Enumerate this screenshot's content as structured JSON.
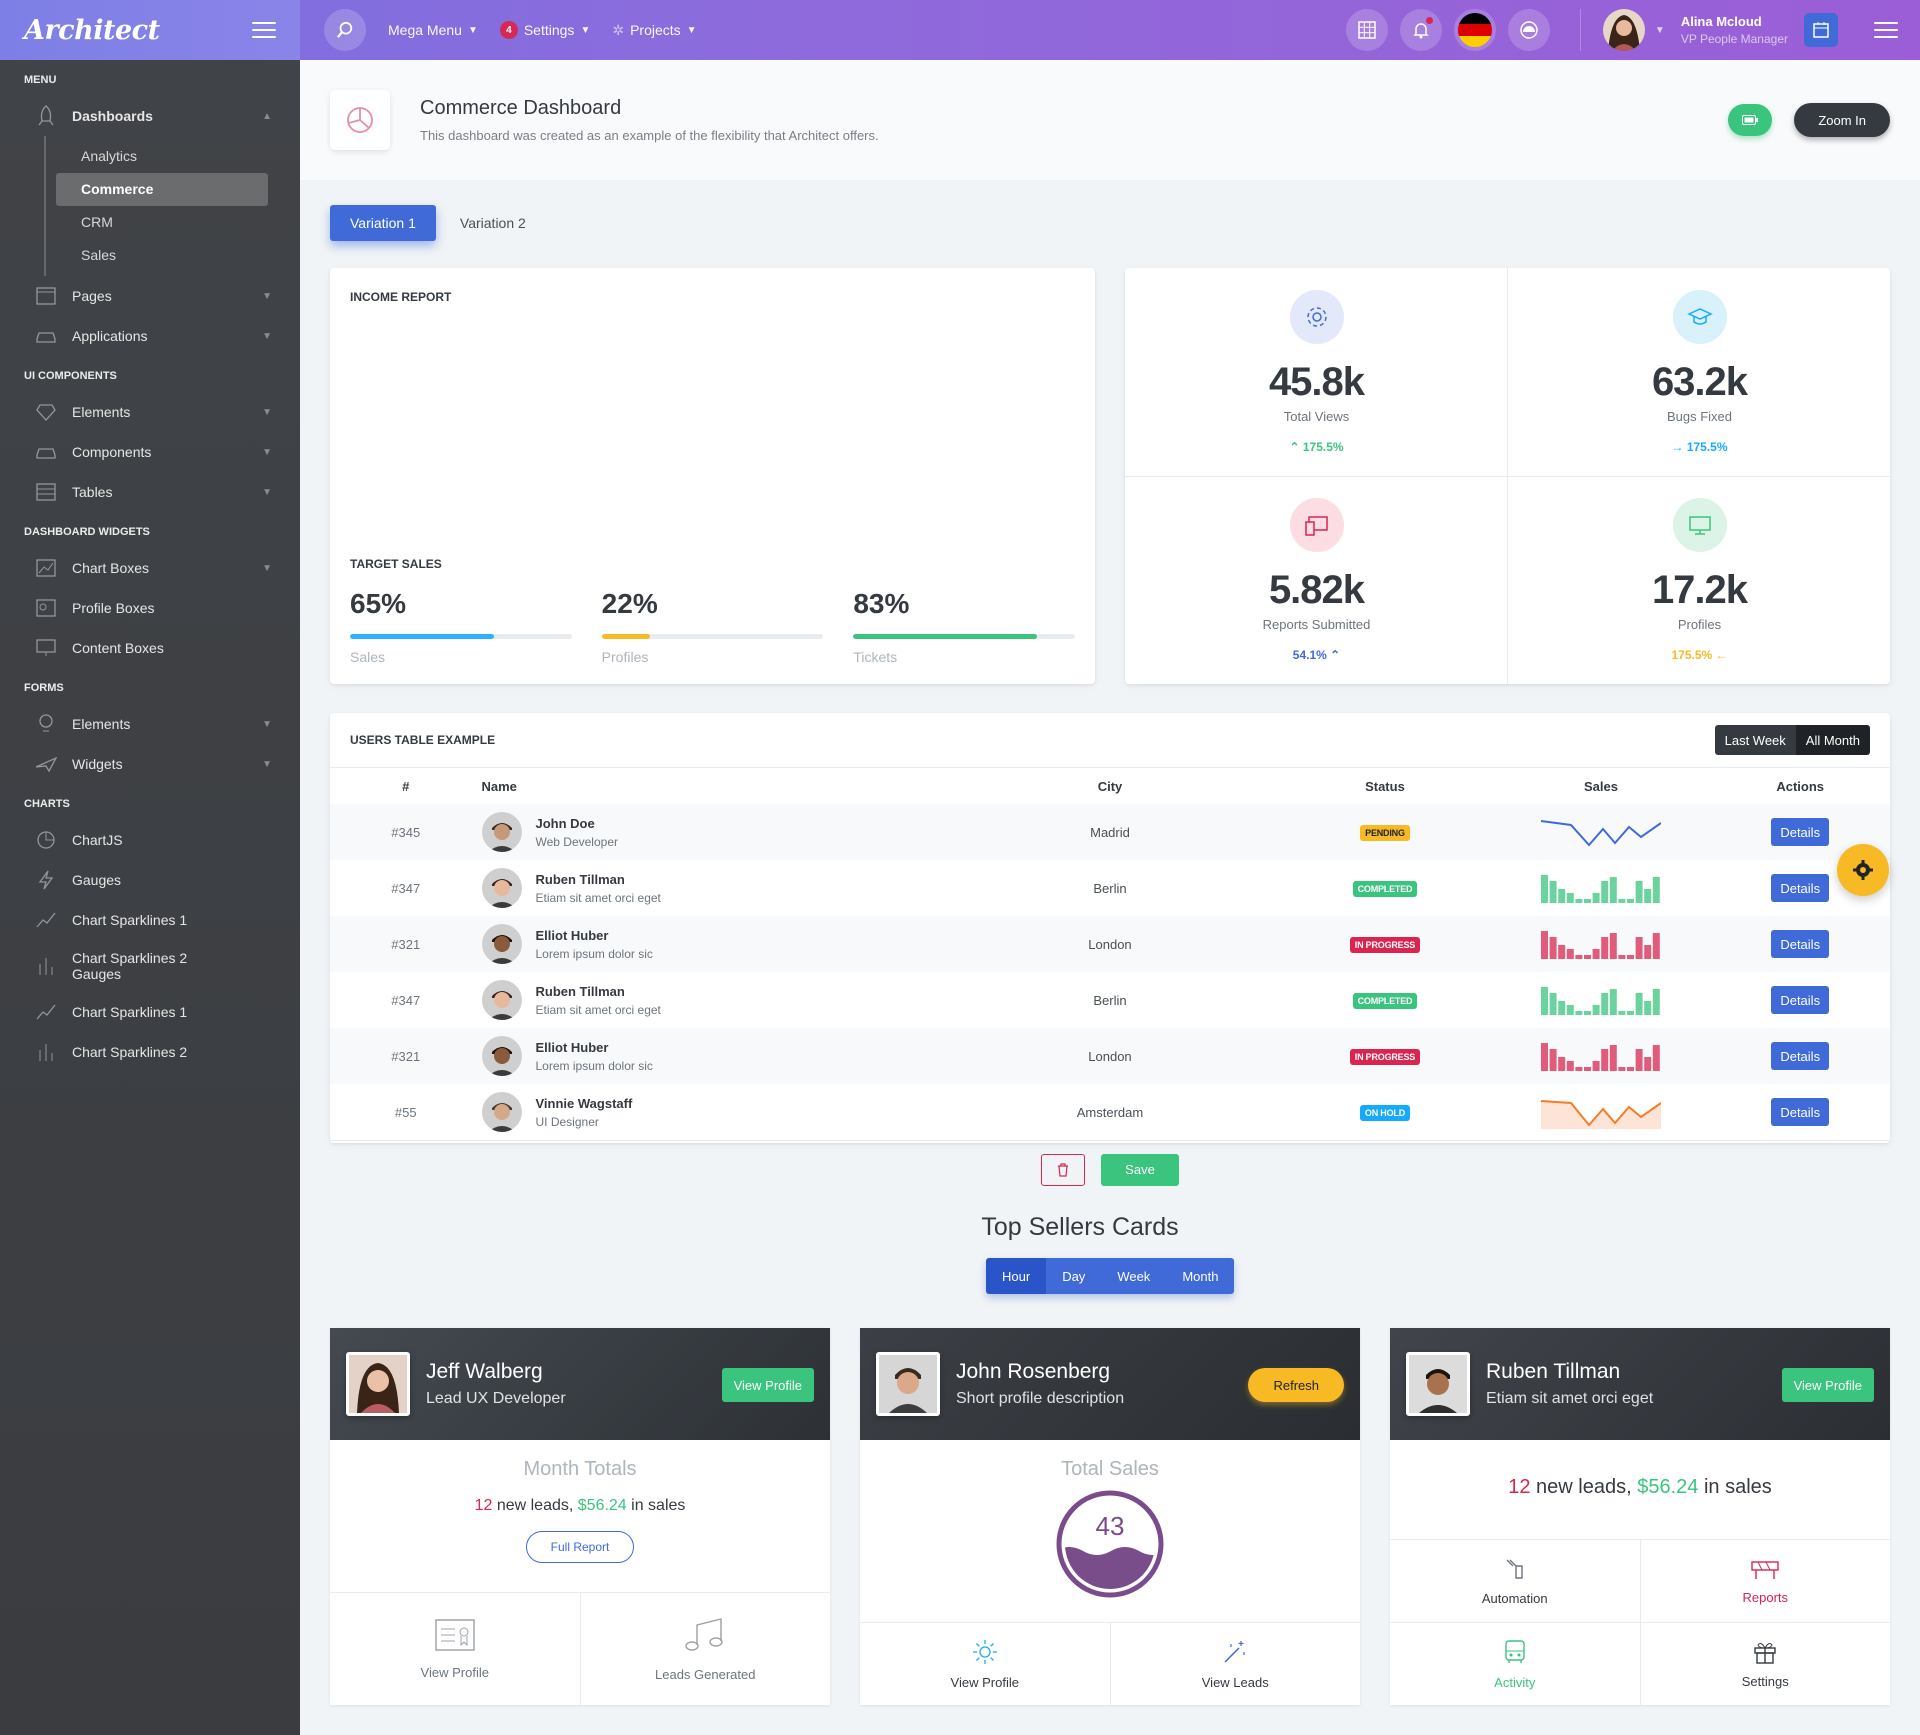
{
  "app": {
    "logo": "Architect"
  },
  "header": {
    "mega_menu": "Mega Menu",
    "settings": "Settings",
    "settings_badge": "4",
    "projects": "Projects",
    "user_name": "Alina Mcloud",
    "user_role": "VP People Manager"
  },
  "sidebar": {
    "menu_heading": "Menu",
    "dashboards": "Dashboards",
    "dash_items": [
      "Analytics",
      "Commerce",
      "CRM",
      "Sales"
    ],
    "pages": "Pages",
    "applications": "Applications",
    "ui_heading": "UI Components",
    "elements": "Elements",
    "components": "Components",
    "tables": "Tables",
    "widgets_heading": "Dashboard Widgets",
    "chart_boxes": "Chart Boxes",
    "profile_boxes": "Profile Boxes",
    "content_boxes": "Content Boxes",
    "forms_heading": "Forms",
    "form_elements": "Elements",
    "form_widgets": "Widgets",
    "charts_heading": "Charts",
    "chartjs": "ChartJS",
    "gauges": "Gauges",
    "sparklines1": "Chart Sparklines 1",
    "sparklines2_gauges_l1": "Chart Sparklines 2",
    "sparklines2_gauges_l2": "Gauges",
    "sparklines1b": "Chart Sparklines 1",
    "sparklines2": "Chart Sparklines 2"
  },
  "page": {
    "title": "Commerce Dashboard",
    "subtitle": "This dashboard was created as an example of the flexibility that Architect offers.",
    "zoom_btn": "Zoom In"
  },
  "tabs": [
    "Variation 1",
    "Variation 2"
  ],
  "income": {
    "title": "Income Report",
    "target_title": "Target Sales",
    "targets": [
      {
        "value": "65%",
        "label": "Sales",
        "pct": 65,
        "color": "#30b1ff"
      },
      {
        "value": "22%",
        "label": "Profiles",
        "pct": 22,
        "color": "#f7b924"
      },
      {
        "value": "83%",
        "label": "Tickets",
        "pct": 83,
        "color": "#3ac47d"
      }
    ]
  },
  "stats": [
    {
      "num": "45.8k",
      "name": "Total Views",
      "delta": "175.5%",
      "arrow": "up",
      "color": "#3ac47d",
      "icon": "gear-icon",
      "bg": "#e6ecff",
      "fg": "#3f6ad8"
    },
    {
      "num": "63.2k",
      "name": "Bugs Fixed",
      "delta": "175.5%",
      "arrow": "right",
      "color": "#16aaff",
      "icon": "graduation-cap-icon",
      "bg": "#dff4fb",
      "fg": "#16aaff"
    },
    {
      "num": "5.82k",
      "name": "Reports Submitted",
      "delta": "54.1%",
      "arrow": "up",
      "color": "#3f6ad8",
      "icon": "devices-icon",
      "bg": "#fde1e6",
      "fg": "#d92550"
    },
    {
      "num": "17.2k",
      "name": "Profiles",
      "delta": "175.5%",
      "arrow": "left",
      "color": "#f7b924",
      "icon": "monitor-icon",
      "bg": "#e0f5ea",
      "fg": "#3ac47d"
    }
  ],
  "users_table": {
    "title": "Users Table Example",
    "seg": [
      "Last Week",
      "All Month"
    ],
    "headers": [
      "#",
      "Name",
      "City",
      "Status",
      "Sales",
      "Actions"
    ],
    "rows": [
      {
        "id": "#345",
        "name": "John Doe",
        "role": "Web Developer",
        "city": "Madrid",
        "status": "Pending",
        "status_color": "#f7b924",
        "status_text": "#212529",
        "spark": "line-blue",
        "action": "Details"
      },
      {
        "id": "#347",
        "name": "Ruben Tillman",
        "role": "Etiam sit amet orci eget",
        "city": "Berlin",
        "status": "Completed",
        "status_color": "#3ac47d",
        "status_text": "#ffffff",
        "spark": "bar-green",
        "action": "Details"
      },
      {
        "id": "#321",
        "name": "Elliot Huber",
        "role": "Lorem ipsum dolor sic",
        "city": "London",
        "status": "In Progress",
        "status_color": "#d92550",
        "status_text": "#ffffff",
        "spark": "bar-red",
        "action": "Details"
      },
      {
        "id": "#347",
        "name": "Ruben Tillman",
        "role": "Etiam sit amet orci eget",
        "city": "Berlin",
        "status": "Completed",
        "status_color": "#3ac47d",
        "status_text": "#ffffff",
        "spark": "bar-green",
        "action": "Details"
      },
      {
        "id": "#321",
        "name": "Elliot Huber",
        "role": "Lorem ipsum dolor sic",
        "city": "London",
        "status": "In Progress",
        "status_color": "#d92550",
        "status_text": "#ffffff",
        "spark": "bar-red",
        "action": "Details"
      },
      {
        "id": "#55",
        "name": "Vinnie Wagstaff",
        "role": "UI Designer",
        "city": "Amsterdam",
        "status": "On Hold",
        "status_color": "#16aaff",
        "status_text": "#ffffff",
        "spark": "line-orange",
        "action": "Details"
      }
    ],
    "save": "Save"
  },
  "top_sellers": {
    "title": "Top Sellers Cards",
    "seg": [
      "Hour",
      "Day",
      "Week",
      "Month"
    ],
    "cards": [
      {
        "name": "Jeff Walberg",
        "desc": "Lead UX Developer",
        "btn": "View Profile",
        "mtitle": "Month Totals",
        "leads_num": "12",
        "leads_txt": " new leads, ",
        "sales_num": "$56.24",
        "sales_txt": " in sales",
        "report_btn": "Full Report",
        "cells": [
          "View Profile",
          "Leads Generated"
        ]
      },
      {
        "name": "John Rosenberg",
        "desc": "Short profile description",
        "btn": "Refresh",
        "mtitle": "Total Sales",
        "gauge": "43",
        "cells": [
          "View Profile",
          "View Leads"
        ]
      },
      {
        "name": "Ruben Tillman",
        "desc": "Etiam sit amet orci eget",
        "btn": "View Profile",
        "leads_num": "12",
        "leads_txt": " new leads, ",
        "sales_num": "$56.24",
        "sales_txt": " in sales",
        "cells": [
          "Automation",
          "Reports",
          "Activity",
          "Settings"
        ]
      }
    ]
  },
  "colors": {
    "primary": "#3f6ad8",
    "success": "#3ac47d",
    "danger": "#d92550",
    "warning": "#f7b924",
    "info": "#16aaff"
  }
}
